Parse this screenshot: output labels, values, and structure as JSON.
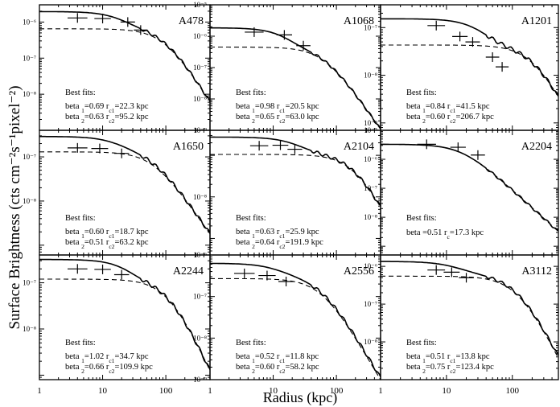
{
  "figure": {
    "ylabel": "Surface Brightness (cts cm⁻²s⁻¹pixel⁻²)",
    "xlabel": "Radius (kpc)",
    "fits_title": "Best fits:"
  },
  "chart_data": [
    {
      "type": "line",
      "title": "A478",
      "x_scale": "log",
      "y_scale": "log",
      "xlim": [
        1,
        500
      ],
      "ylim": [
        1e-09,
        3e-06
      ],
      "x_ticks": [
        "1",
        "10",
        "100"
      ],
      "y_ticks": [
        {
          "v": 1e-06,
          "label": "10⁻⁶"
        },
        {
          "v": 1e-07,
          "label": "10⁻⁷"
        },
        {
          "v": 1e-08,
          "label": "10⁻⁸"
        }
      ],
      "models": [
        {
          "name": "beta_1",
          "norm": 1.3e-06,
          "rc": 22.3,
          "beta": 0.69
        },
        {
          "name": "beta_2",
          "norm": 6.5e-07,
          "rc": 95.2,
          "beta": 0.63
        }
      ],
      "data_points": [
        {
          "r": 4,
          "y": 1.3e-06
        },
        {
          "r": 10,
          "y": 1.25e-06
        },
        {
          "r": 25,
          "y": 1e-06
        },
        {
          "r": 40,
          "y": 6e-07
        }
      ],
      "fit_lines": [
        "beta 1=0.69 r c1=22.3 kpc",
        "beta 2=0.63 r c2=95.2 kpc"
      ]
    },
    {
      "type": "line",
      "title": "A1068",
      "x_scale": "log",
      "y_scale": "log",
      "xlim": [
        1,
        500
      ],
      "ylim": [
        1e-09,
        1e-05
      ],
      "x_ticks": [
        "1",
        "10",
        "100"
      ],
      "y_ticks": [
        {
          "v": 1e-05,
          "label": "10⁻⁵"
        },
        {
          "v": 1e-06,
          "label": "10⁻⁶"
        },
        {
          "v": 1e-07,
          "label": "10⁻⁷"
        },
        {
          "v": 1e-08,
          "label": "10⁻⁸"
        },
        {
          "v": 1e-09,
          "label": "10⁻⁹"
        }
      ],
      "models": [
        {
          "name": "beta_1",
          "norm": 1.4e-06,
          "rc": 20.5,
          "beta": 0.98
        },
        {
          "name": "beta_2",
          "norm": 4.5e-07,
          "rc": 63.0,
          "beta": 0.65
        }
      ],
      "data_points": [
        {
          "r": 5,
          "y": 1.35e-06
        },
        {
          "r": 15,
          "y": 1.1e-06
        },
        {
          "r": 30,
          "y": 5e-07
        }
      ],
      "fit_lines": [
        "beta 1=0.98 r c1=20.5 kpc",
        "beta 2=0.65 r c2=63.0 kpc"
      ]
    },
    {
      "type": "line",
      "title": "A1201",
      "x_scale": "log",
      "y_scale": "log",
      "xlim": [
        1,
        500
      ],
      "ylim": [
        7e-10,
        3e-07
      ],
      "x_ticks": [
        "1",
        "10",
        "100"
      ],
      "y_ticks": [
        {
          "v": 1e-07,
          "label": "10⁻⁷"
        },
        {
          "v": 1e-08,
          "label": "10⁻⁸"
        },
        {
          "v": 1e-09,
          "label": "10⁻⁹"
        }
      ],
      "models": [
        {
          "name": "beta_1",
          "norm": 1.1e-07,
          "rc": 41.5,
          "beta": 0.84
        },
        {
          "name": "beta_2",
          "norm": 4.3e-08,
          "rc": 206.7,
          "beta": 0.6
        }
      ],
      "data_points": [
        {
          "r": 7,
          "y": 1.1e-07
        },
        {
          "r": 16,
          "y": 6.5e-08
        },
        {
          "r": 25,
          "y": 5e-08
        },
        {
          "r": 50,
          "y": 2.4e-08
        },
        {
          "r": 70,
          "y": 1.5e-08
        }
      ],
      "fit_lines": [
        "beta 1=0.84 r c1=41.5 kpc",
        "beta 2=0.60 r c2=206.7 kpc"
      ]
    },
    {
      "type": "line",
      "title": "A1650",
      "x_scale": "log",
      "y_scale": "log",
      "xlim": [
        1,
        500
      ],
      "ylim": [
        6e-10,
        4e-07
      ],
      "x_ticks": [
        "1",
        "10",
        "100"
      ],
      "y_ticks": [
        {
          "v": 1e-07,
          "label": "10⁻⁷"
        },
        {
          "v": 1e-08,
          "label": "10⁻⁸"
        }
      ],
      "models": [
        {
          "name": "beta_1",
          "norm": 1.6e-07,
          "rc": 18.7,
          "beta": 0.6
        },
        {
          "name": "beta_2",
          "norm": 1.3e-07,
          "rc": 63.2,
          "beta": 0.51
        }
      ],
      "data_points": [
        {
          "r": 4,
          "y": 1.6e-07
        },
        {
          "r": 9,
          "y": 1.55e-07
        },
        {
          "r": 20,
          "y": 1.2e-07
        }
      ],
      "fit_lines": [
        "beta 1=0.60 r c1=18.7 kpc",
        "beta 2=0.51 r c2=63.2 kpc"
      ]
    },
    {
      "type": "line",
      "title": "A2104",
      "x_scale": "log",
      "y_scale": "log",
      "xlim": [
        1,
        500
      ],
      "ylim": [
        4e-10,
        4e-07
      ],
      "x_ticks": [
        "1",
        "10",
        "100"
      ],
      "y_ticks": [
        {
          "v": 1e-08,
          "label": "10⁻⁸"
        }
      ],
      "models": [
        {
          "name": "beta_1",
          "norm": 1.7e-07,
          "rc": 25.9,
          "beta": 0.63
        },
        {
          "name": "beta_2",
          "norm": 1.05e-07,
          "rc": 191.9,
          "beta": 0.64
        }
      ],
      "data_points": [
        {
          "r": 6,
          "y": 1.7e-07
        },
        {
          "r": 13,
          "y": 1.75e-07
        },
        {
          "r": 22,
          "y": 1.4e-07
        }
      ],
      "fit_lines": [
        "beta 1=0.63 r c1=25.9 kpc",
        "beta 2=0.64 r c2=191.9 kpc"
      ]
    },
    {
      "type": "line",
      "title": "A2204",
      "x_scale": "log",
      "y_scale": "log",
      "xlim": [
        1,
        500
      ],
      "ylim": [
        5e-10,
        1e-05
      ],
      "x_ticks": [
        "1",
        "10",
        "100"
      ],
      "y_ticks": [
        {
          "v": 1e-05,
          "label": "10⁻⁵"
        },
        {
          "v": 1e-06,
          "label": "10⁻⁶"
        },
        {
          "v": 1e-07,
          "label": "10⁻⁷"
        },
        {
          "v": 1e-08,
          "label": "10⁻⁸"
        }
      ],
      "models": [
        {
          "name": "beta",
          "norm": 3.3e-06,
          "rc": 17.3,
          "beta": 0.51
        }
      ],
      "data_points": [
        {
          "r": 5,
          "y": 3.3e-06
        },
        {
          "r": 15,
          "y": 2.6e-06
        },
        {
          "r": 30,
          "y": 1.4e-06
        }
      ],
      "fit_lines": [
        "beta=0.51 r c=17.3 kpc"
      ]
    },
    {
      "type": "line",
      "title": "A2244",
      "x_scale": "log",
      "y_scale": "log",
      "xlim": [
        1,
        500
      ],
      "ylim": [
        8e-10,
        4e-07
      ],
      "x_ticks": [
        "1",
        "10",
        "100"
      ],
      "y_ticks": [
        {
          "v": 1e-07,
          "label": "10⁻⁷"
        },
        {
          "v": 1e-08,
          "label": "10⁻⁸"
        }
      ],
      "models": [
        {
          "name": "beta_1",
          "norm": 2e-07,
          "rc": 34.7,
          "beta": 1.02
        },
        {
          "name": "beta_2",
          "norm": 1.2e-07,
          "rc": 109.9,
          "beta": 0.66
        }
      ],
      "data_points": [
        {
          "r": 4,
          "y": 2e-07
        },
        {
          "r": 10,
          "y": 1.95e-07
        },
        {
          "r": 20,
          "y": 1.5e-07
        }
      ],
      "fit_lines": [
        "beta 1=1.02 r c1=34.7 kpc",
        "beta 2=0.66 r c2=109.9 kpc"
      ]
    },
    {
      "type": "line",
      "title": "A2556",
      "x_scale": "log",
      "y_scale": "log",
      "xlim": [
        1,
        500
      ],
      "ylim": [
        1e-09,
        1e-06
      ],
      "x_ticks": [
        "1",
        "10",
        "100"
      ],
      "y_ticks": [
        {
          "v": 1e-06,
          "label": "10⁻⁶"
        },
        {
          "v": 1e-07,
          "label": "10⁻⁷"
        },
        {
          "v": 1e-08,
          "label": "10⁻⁸"
        },
        {
          "v": 1e-09,
          "label": "10⁻⁹"
        }
      ],
      "models": [
        {
          "name": "beta_1",
          "norm": 3.6e-07,
          "rc": 11.8,
          "beta": 0.52
        },
        {
          "name": "beta_2",
          "norm": 2.7e-07,
          "rc": 58.2,
          "beta": 0.6
        }
      ],
      "data_points": [
        {
          "r": 3.5,
          "y": 3.6e-07
        },
        {
          "r": 8,
          "y": 3.2e-07
        },
        {
          "r": 16,
          "y": 2.3e-07
        }
      ],
      "fit_lines": [
        "beta 1=0.52 r c1=11.8 kpc",
        "beta 2=0.60 r c2=58.2 kpc"
      ]
    },
    {
      "type": "line",
      "title": "A3112",
      "x_scale": "log",
      "y_scale": "log",
      "xlim": [
        1,
        500
      ],
      "ylim": [
        1e-09,
        2e-06
      ],
      "x_ticks": [
        "1",
        "10",
        "100"
      ],
      "y_ticks": [
        {
          "v": 1e-06,
          "label": "10⁻⁶"
        },
        {
          "v": 1e-07,
          "label": "10⁻⁷"
        },
        {
          "v": 1e-08,
          "label": "10⁻⁸"
        }
      ],
      "models": [
        {
          "name": "beta_1",
          "norm": 8e-07,
          "rc": 13.8,
          "beta": 0.51
        },
        {
          "name": "beta_2",
          "norm": 5.5e-07,
          "rc": 123.4,
          "beta": 0.75
        }
      ],
      "data_points": [
        {
          "r": 7,
          "y": 8e-07
        },
        {
          "r": 12,
          "y": 7e-07
        },
        {
          "r": 20,
          "y": 5e-07
        }
      ],
      "fit_lines": [
        "beta 1=0.51 r c1=13.8 kpc",
        "beta 2=0.75 r c2=123.4 kpc"
      ]
    }
  ]
}
